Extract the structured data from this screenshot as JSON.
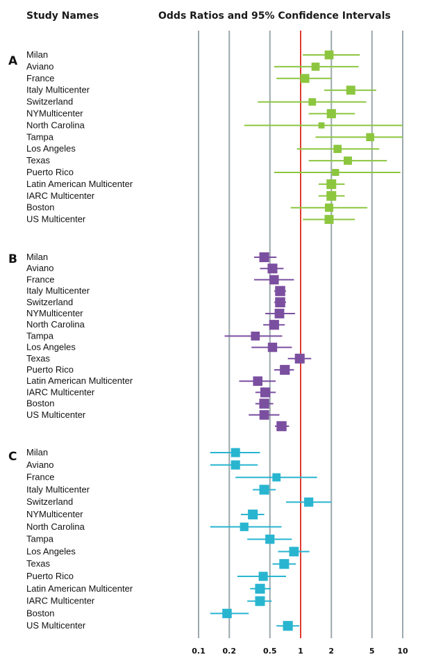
{
  "headers": {
    "left": "Study Names",
    "right": "Odds Ratios and 95% Confidence Intervals"
  },
  "chart_data": {
    "type": "forest",
    "x_scale": "log",
    "xlim": [
      0.1,
      10
    ],
    "x_ticks": [
      {
        "value": 0.1,
        "label": "0.1"
      },
      {
        "value": 0.2,
        "label": "0.2"
      },
      {
        "value": 0.5,
        "label": "0.5"
      },
      {
        "value": 1,
        "label": "1"
      },
      {
        "value": 2,
        "label": "2"
      },
      {
        "value": 5,
        "label": "5"
      },
      {
        "value": 10,
        "label": "10"
      }
    ],
    "reference_line": 1,
    "panels": [
      {
        "label": "A",
        "color": "#8cc63f",
        "studies": [
          {
            "name": "Milan",
            "or": 1.9,
            "lower": 1.05,
            "upper": 3.8
          },
          {
            "name": "Aviano",
            "or": 1.4,
            "lower": 0.55,
            "upper": 3.7
          },
          {
            "name": "France",
            "or": 1.1,
            "lower": 0.58,
            "upper": 2.0
          },
          {
            "name": "Italy Multicenter",
            "or": 3.1,
            "lower": 1.7,
            "upper": 5.5
          },
          {
            "name": "Switzerland",
            "or": 1.3,
            "lower": 0.38,
            "upper": 4.4
          },
          {
            "name": "NYMulticenter",
            "or": 2.0,
            "lower": 1.2,
            "upper": 3.4
          },
          {
            "name": "North Carolina",
            "or": 1.6,
            "lower": 0.28,
            "upper": 10.0
          },
          {
            "name": "Tampa",
            "or": 4.8,
            "lower": 1.4,
            "upper": 10.0
          },
          {
            "name": "Los Angeles",
            "or": 2.3,
            "lower": 0.92,
            "upper": 5.9
          },
          {
            "name": "Texas",
            "or": 2.9,
            "lower": 1.2,
            "upper": 7.0
          },
          {
            "name": "Puerto Rico",
            "or": 2.2,
            "lower": 0.55,
            "upper": 9.5
          },
          {
            "name": "Latin American Multicenter",
            "or": 2.0,
            "lower": 1.5,
            "upper": 2.7
          },
          {
            "name": "IARC Multicenter",
            "or": 2.0,
            "lower": 1.5,
            "upper": 2.7
          },
          {
            "name": "Boston",
            "or": 1.9,
            "lower": 0.8,
            "upper": 4.5
          },
          {
            "name": "US Multicenter",
            "or": 1.9,
            "lower": 1.05,
            "upper": 3.4
          }
        ]
      },
      {
        "label": "B",
        "color": "#7b4fa0",
        "studies": [
          {
            "name": "Milan",
            "or": 0.44,
            "lower": 0.35,
            "upper": 0.58
          },
          {
            "name": "Aviano",
            "or": 0.53,
            "lower": 0.4,
            "upper": 0.68
          },
          {
            "name": "France",
            "or": 0.55,
            "lower": 0.35,
            "upper": 0.86
          },
          {
            "name": "Italy Multicenter",
            "or": 0.63,
            "lower": 0.55,
            "upper": 0.72
          },
          {
            "name": "Switzerland",
            "or": 0.63,
            "lower": 0.55,
            "upper": 0.72
          },
          {
            "name": "NYMulticenter",
            "or": 0.62,
            "lower": 0.45,
            "upper": 0.88
          },
          {
            "name": "North Carolina",
            "or": 0.55,
            "lower": 0.43,
            "upper": 0.7
          },
          {
            "name": "Tampa",
            "or": 0.36,
            "lower": 0.18,
            "upper": 0.66
          },
          {
            "name": "Los Angeles",
            "or": 0.53,
            "lower": 0.33,
            "upper": 0.82
          },
          {
            "name": "Texas",
            "or": 0.98,
            "lower": 0.75,
            "upper": 1.27
          },
          {
            "name": "Puerto Rico",
            "or": 0.7,
            "lower": 0.55,
            "upper": 0.86
          },
          {
            "name": "Latin American Multicenter",
            "or": 0.38,
            "lower": 0.25,
            "upper": 0.57
          },
          {
            "name": "IARC Multicenter",
            "or": 0.45,
            "lower": 0.36,
            "upper": 0.57
          },
          {
            "name": "Boston",
            "or": 0.44,
            "lower": 0.36,
            "upper": 0.54
          },
          {
            "name": "US Multicenter",
            "or": 0.44,
            "lower": 0.31,
            "upper": 0.62
          }
        ],
        "extra_points": [
          {
            "or": 0.65,
            "lower": 0.56,
            "upper": 0.77
          }
        ]
      },
      {
        "label": "C",
        "color": "#29b5d0",
        "studies": [
          {
            "name": "Milan",
            "or": 0.23,
            "lower": 0.13,
            "upper": 0.4
          },
          {
            "name": "Aviano",
            "or": 0.23,
            "lower": 0.13,
            "upper": 0.38
          },
          {
            "name": "France",
            "or": 0.58,
            "lower": 0.23,
            "upper": 1.45
          },
          {
            "name": "Italy Multicenter",
            "or": 0.44,
            "lower": 0.34,
            "upper": 0.57
          },
          {
            "name": "Switzerland",
            "or": 1.2,
            "lower": 0.72,
            "upper": 2.0
          },
          {
            "name": "NYMulticenter",
            "or": 0.34,
            "lower": 0.26,
            "upper": 0.44
          },
          {
            "name": "North Carolina",
            "or": 0.28,
            "lower": 0.13,
            "upper": 0.65
          },
          {
            "name": "Tampa",
            "or": 0.5,
            "lower": 0.3,
            "upper": 0.82
          },
          {
            "name": "Los Angeles",
            "or": 0.86,
            "lower": 0.6,
            "upper": 1.22
          },
          {
            "name": "Texas",
            "or": 0.69,
            "lower": 0.53,
            "upper": 0.9
          },
          {
            "name": "Puerto Rico",
            "or": 0.43,
            "lower": 0.24,
            "upper": 0.72
          },
          {
            "name": "Latin American Multicenter",
            "or": 0.4,
            "lower": 0.32,
            "upper": 0.51
          },
          {
            "name": "IARC Multicenter",
            "or": 0.4,
            "lower": 0.3,
            "upper": 0.52
          },
          {
            "name": "Boston",
            "or": 0.19,
            "lower": 0.13,
            "upper": 0.31
          },
          {
            "name": "US Multicenter",
            "or": 0.75,
            "lower": 0.58,
            "upper": 0.97
          }
        ]
      }
    ]
  }
}
